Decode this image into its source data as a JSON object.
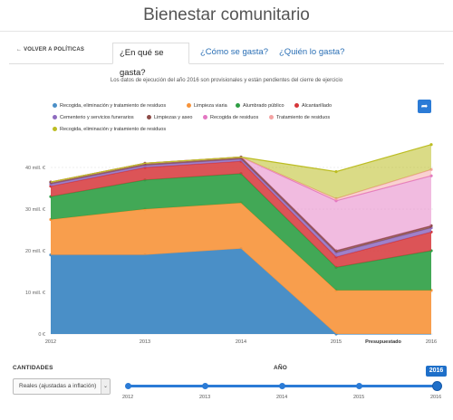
{
  "page": {
    "title": "Bienestar comunitario"
  },
  "nav": {
    "back_label": "← VOLVER A POLÍTICAS",
    "tabs": [
      {
        "label": "¿En qué se gasta?",
        "active": true
      },
      {
        "label": "¿Cómo se gasta?",
        "active": false
      },
      {
        "label": "¿Quién lo gasta?",
        "active": false
      }
    ]
  },
  "note": "Los datos de ejecución del año 2016 son provisionales y están pendientes del cierre de ejercicio",
  "legend": [
    {
      "label": "Recogida, eliminación y tratamiento de residuos",
      "color": "#4a8fc7"
    },
    {
      "label": "Limpieza viaria",
      "color": "#f7933a"
    },
    {
      "label": "Alumbrado público",
      "color": "#2e9e44"
    },
    {
      "label": "Alcantarillado",
      "color": "#d6363a"
    },
    {
      "label": "Cementerio y servicios funerarios",
      "color": "#8e6bbf"
    },
    {
      "label": "Limpiezas y aseo",
      "color": "#8c4b47"
    },
    {
      "label": "Recogida de residuos",
      "color": "#e377c2"
    },
    {
      "label": "Tratamiento de residuos",
      "color": "#f4a3a3"
    },
    {
      "label": "Recogida, eliminación y tratamiento de residuos",
      "color": "#bcbd22"
    }
  ],
  "share_icon": "share-arrow-icon",
  "chart_data": {
    "type": "area",
    "stacked": true,
    "x": [
      "2012",
      "2013",
      "2014",
      "2015",
      "2016"
    ],
    "x_annotation": "Presupuestado",
    "ylim": [
      0,
      45
    ],
    "yticks": [
      0,
      10,
      20,
      30,
      40
    ],
    "ytick_labels": [
      "0 €",
      "10 mill. €",
      "20 mill. €",
      "30 mill. €",
      "40 mill. €"
    ],
    "grid": true,
    "series": [
      {
        "name": "Recogida, eliminación y tratamiento de residuos",
        "values": [
          19,
          19,
          20.5,
          0,
          0
        ],
        "fill": "#4a8fc7",
        "opacity": 1
      },
      {
        "name": "Limpieza viaria",
        "values": [
          8.5,
          11,
          11,
          10.5,
          10.5
        ],
        "fill": "#f7933a",
        "opacity": 0.9
      },
      {
        "name": "Alumbrado público",
        "values": [
          5.5,
          7,
          7,
          5.5,
          9.5
        ],
        "fill": "#2e9e44",
        "opacity": 0.9
      },
      {
        "name": "Alcantarillado",
        "values": [
          2.5,
          3,
          3,
          2.5,
          4.5
        ],
        "fill": "#d6363a",
        "opacity": 0.85
      },
      {
        "name": "Cementerio y servicios funerarios",
        "values": [
          0.5,
          0.5,
          0.5,
          1,
          1
        ],
        "fill": "#8e6bbf",
        "opacity": 0.85
      },
      {
        "name": "Limpiezas y aseo",
        "values": [
          0.5,
          0.5,
          0.5,
          0.5,
          0.5
        ],
        "fill": "#8c4b47",
        "opacity": 0.85
      },
      {
        "name": "Recogida de residuos",
        "values": [
          0,
          0,
          0,
          12,
          12
        ],
        "fill": "#e377c2",
        "opacity": 0.5
      },
      {
        "name": "Tratamiento de residuos",
        "values": [
          0,
          0,
          0,
          0.5,
          1.5
        ],
        "fill": "#f4a3a3",
        "opacity": 0.5
      },
      {
        "name": "Recogida, eliminación y tratamiento de residuos",
        "values": [
          0,
          0,
          0,
          6.5,
          6
        ],
        "fill": "#bcbd22",
        "opacity": 0.55
      }
    ]
  },
  "controls": {
    "cantidades_label": "CANTIDADES",
    "cantidades_value": "Reales (ajustadas a inflación)",
    "year_label": "AÑO",
    "years": [
      "2012",
      "2013",
      "2014",
      "2015",
      "2016"
    ],
    "selected_year": "2016"
  }
}
